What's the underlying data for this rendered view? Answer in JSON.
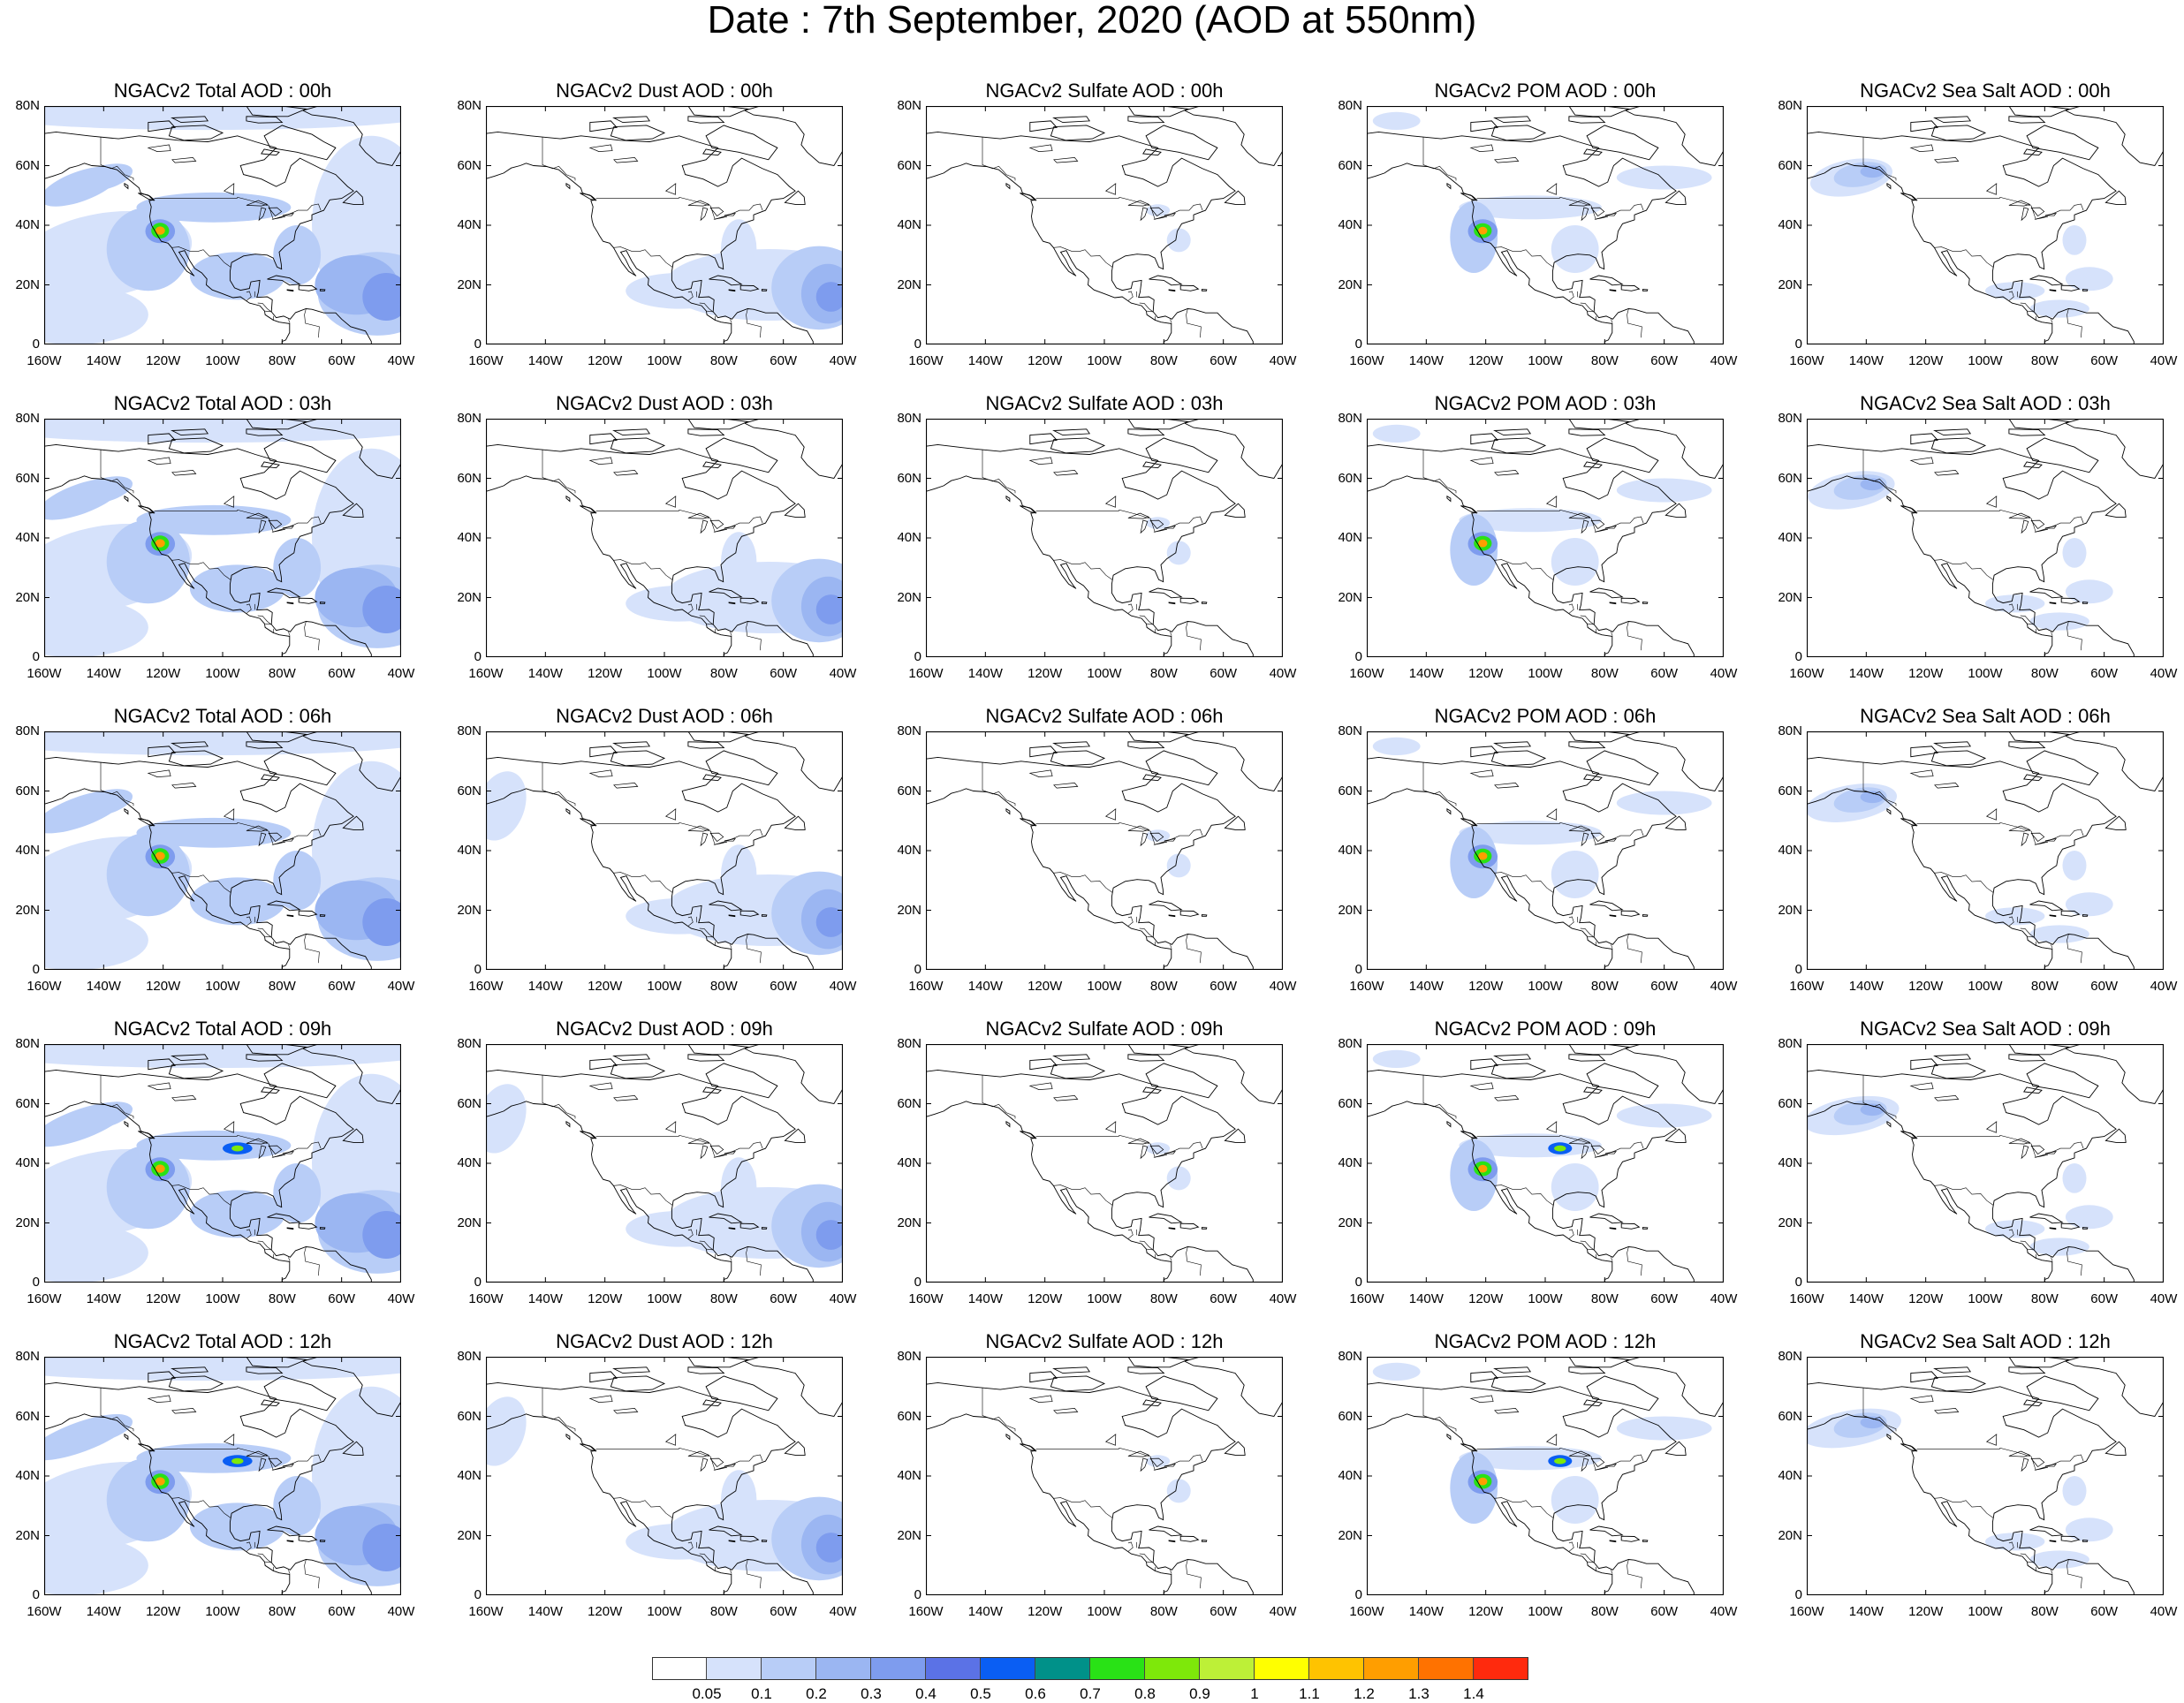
{
  "title": "Date : 7th September, 2020 (AOD at 550nm)",
  "y_tick_labels": [
    "80N",
    "60N",
    "40N",
    "20N",
    "0"
  ],
  "x_tick_labels": [
    "160W",
    "140W",
    "120W",
    "100W",
    "80W",
    "60W",
    "40W"
  ],
  "panel_titles": [
    [
      "NGACv2 Total AOD : 00h",
      "NGACv2 Dust AOD : 00h",
      "NGACv2 Sulfate AOD : 00h",
      "NGACv2 POM AOD : 00h",
      "NGACv2 Sea Salt AOD : 00h"
    ],
    [
      "NGACv2 Total AOD : 03h",
      "NGACv2 Dust AOD : 03h",
      "NGACv2 Sulfate AOD : 03h",
      "NGACv2 POM AOD : 03h",
      "NGACv2 Sea Salt AOD : 03h"
    ],
    [
      "NGACv2 Total AOD : 06h",
      "NGACv2 Dust AOD : 06h",
      "NGACv2 Sulfate AOD : 06h",
      "NGACv2 POM AOD : 06h",
      "NGACv2 Sea Salt AOD : 06h"
    ],
    [
      "NGACv2 Total AOD : 09h",
      "NGACv2 Dust AOD : 09h",
      "NGACv2 Sulfate AOD : 09h",
      "NGACv2 POM AOD : 09h",
      "NGACv2 Sea Salt  AOD : 09h"
    ],
    [
      "NGACv2 Total AOD  : 12h",
      "NGACv2 Dust AOD : 12h",
      "NGACv2 Sulfate AOD : 12h",
      "NGACv2 POM  AOD : 12h",
      "NGACv2 Sea Salt  AOD : 12h"
    ]
  ],
  "colorbar": {
    "labels": [
      "0.05",
      "0.1",
      "0.2",
      "0.3",
      "0.4",
      "0.5",
      "0.6",
      "0.7",
      "0.8",
      "0.9",
      "1",
      "1.1",
      "1.2",
      "1.3",
      "1.4"
    ],
    "colors": [
      "#ffffff",
      "#d6e2fb",
      "#b8cdf7",
      "#9bb6f2",
      "#7e9cee",
      "#5b72e6",
      "#0a5ef3",
      "#009189",
      "#29e216",
      "#7ee80a",
      "#bdf037",
      "#ffff00",
      "#ffc300",
      "#ff9e00",
      "#ff7200",
      "#ff2a0d"
    ]
  },
  "map_extent": {
    "lon": [
      -160,
      -40
    ],
    "lat": [
      0,
      80
    ]
  }
}
